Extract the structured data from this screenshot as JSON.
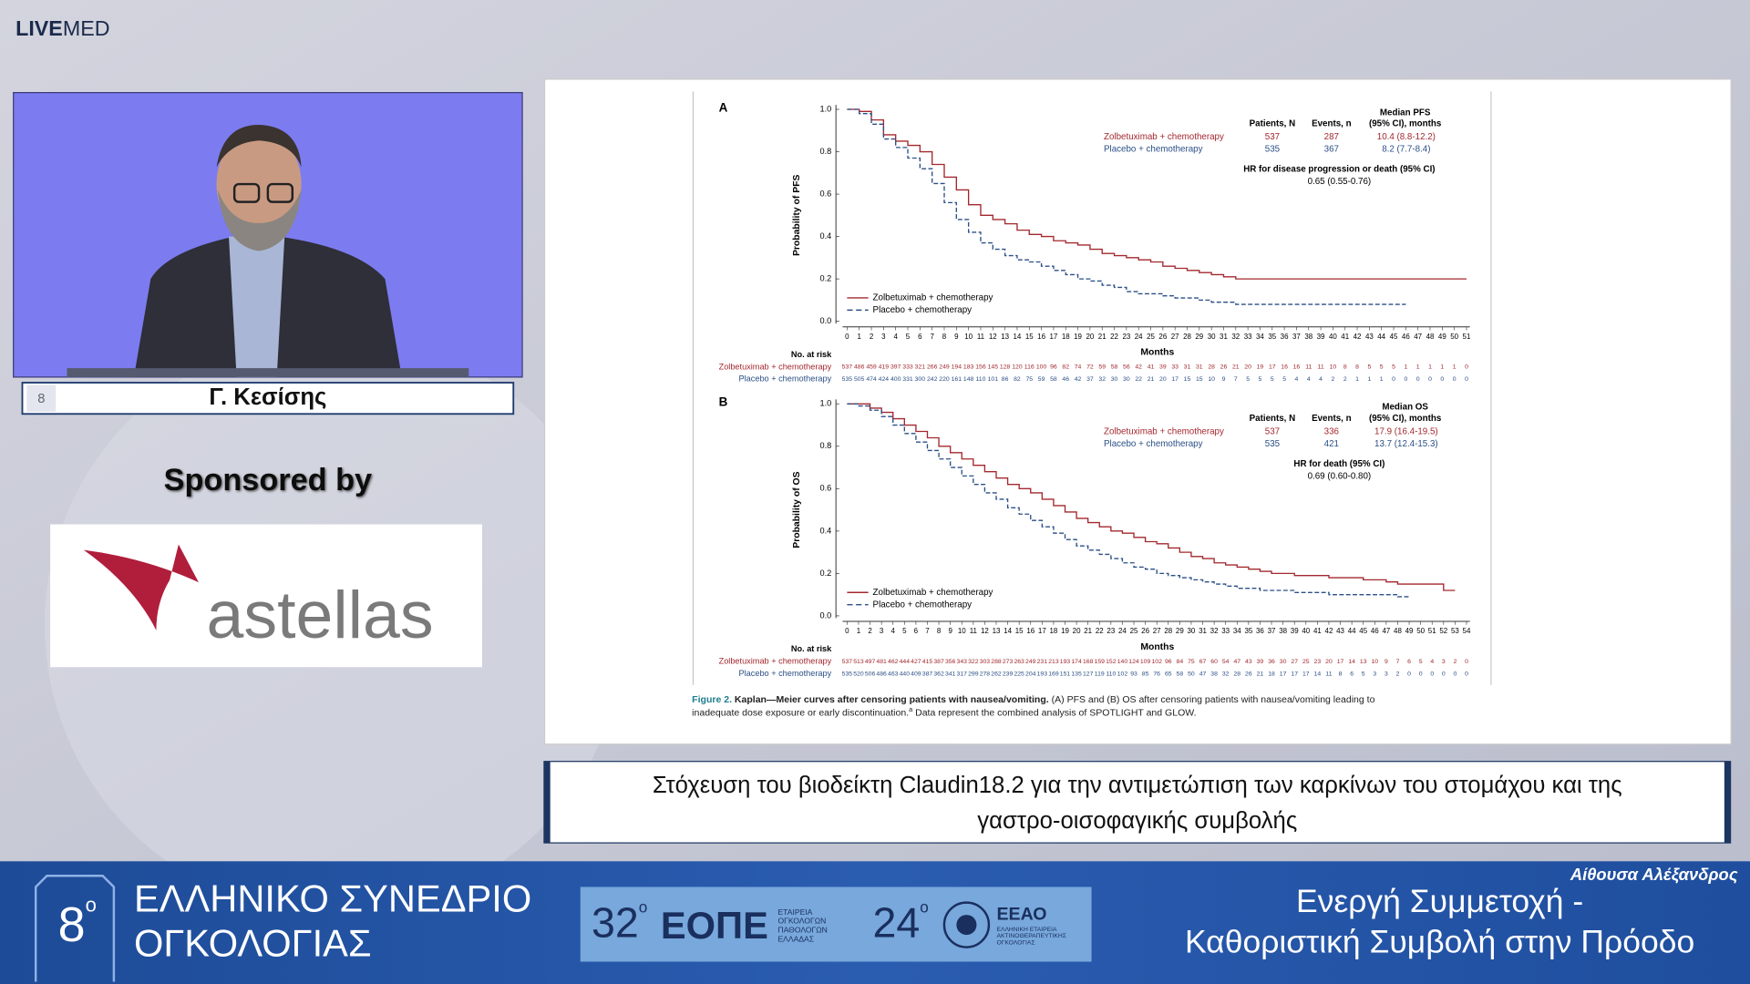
{
  "header": {
    "logo_bold": "LIVE",
    "logo_light": "MED"
  },
  "speaker": {
    "name": "Γ. Κεσίσης",
    "badge": "8"
  },
  "sponsor": {
    "label": "Sponsored by",
    "logo": "astellas"
  },
  "slide": {
    "panels": [
      {
        "label": "A",
        "y_label": "Probability of PFS",
        "x_label": "Months",
        "at_risk_label": "No. at risk",
        "ylim": [
          0,
          1
        ],
        "yticks": [
          {
            "value": 0,
            "label": "0.0"
          },
          {
            "value": 0.2,
            "label": "0.2"
          },
          {
            "value": 0.4,
            "label": "0.4"
          },
          {
            "value": 0.6,
            "label": "0.6"
          },
          {
            "value": 0.8,
            "label": "0.8"
          },
          {
            "value": 1,
            "label": "1.0"
          }
        ],
        "xlim": [
          0,
          51
        ],
        "xticks": [
          0,
          1,
          2,
          3,
          4,
          5,
          6,
          7,
          8,
          9,
          10,
          11,
          12,
          13,
          14,
          15,
          16,
          17,
          18,
          19,
          20,
          21,
          22,
          23,
          24,
          25,
          26,
          27,
          28,
          29,
          30,
          31,
          32,
          33,
          34,
          35,
          36,
          37,
          38,
          39,
          40,
          41,
          42,
          43,
          44,
          45,
          46,
          47,
          48,
          49,
          50,
          51
        ],
        "table_headers": {
          "patients": "Patients, N",
          "events": "Events, n",
          "median_1": "Median PFS",
          "median_2": "(95% CI), months"
        },
        "hr_label": "HR for disease progression or death (95% CI)",
        "hr_value": "0.65 (0.55-0.76)",
        "series": [
          {
            "name": "Zolbetuximab + chemotherapy",
            "color": "#a3282e",
            "dashed": false,
            "patients": 537,
            "events": 287,
            "median": "10.4 (8.8-12.2)",
            "values": [
              1.0,
              0.99,
              0.95,
              0.88,
              0.85,
              0.83,
              0.8,
              0.74,
              0.68,
              0.62,
              0.55,
              0.5,
              0.48,
              0.46,
              0.43,
              0.41,
              0.4,
              0.38,
              0.37,
              0.36,
              0.34,
              0.32,
              0.31,
              0.3,
              0.29,
              0.28,
              0.26,
              0.25,
              0.24,
              0.23,
              0.22,
              0.21,
              0.2,
              0.2,
              0.2,
              0.2,
              0.2,
              0.2,
              0.2,
              0.2,
              0.2,
              0.2,
              0.2,
              0.2,
              0.2,
              0.2,
              0.2,
              0.2,
              0.2,
              0.2,
              0.2,
              0.2
            ],
            "at_risk": [
              537,
              486,
              459,
              419,
              397,
              333,
              321,
              266,
              249,
              194,
              183,
              156,
              145,
              128,
              120,
              116,
              100,
              96,
              82,
              74,
              72,
              59,
              58,
              56,
              42,
              41,
              39,
              33,
              31,
              31,
              28,
              26,
              21,
              20,
              19,
              17,
              16,
              16,
              11,
              11,
              10,
              8,
              8,
              5,
              5,
              5,
              1,
              1,
              1,
              1,
              1,
              0
            ]
          },
          {
            "name": "Placebo + chemotherapy",
            "color": "#2b4f86",
            "dashed": true,
            "patients": 535,
            "events": 367,
            "median": "8.2 (7.7-8.4)",
            "values": [
              1.0,
              0.98,
              0.93,
              0.86,
              0.82,
              0.77,
              0.72,
              0.65,
              0.56,
              0.48,
              0.42,
              0.37,
              0.34,
              0.31,
              0.29,
              0.28,
              0.26,
              0.24,
              0.22,
              0.2,
              0.19,
              0.17,
              0.16,
              0.14,
              0.13,
              0.13,
              0.12,
              0.11,
              0.11,
              0.1,
              0.09,
              0.09,
              0.08,
              0.08,
              0.08,
              0.08,
              0.08,
              0.08,
              0.08,
              0.08,
              0.08,
              0.08,
              0.08,
              0.08,
              0.08,
              0.08,
              0.08
            ],
            "at_risk": [
              535,
              505,
              474,
              424,
              400,
              331,
              300,
              242,
              220,
              161,
              148,
              110,
              101,
              86,
              82,
              75,
              59,
              58,
              46,
              42,
              37,
              32,
              30,
              30,
              22,
              21,
              20,
              17,
              15,
              15,
              10,
              9,
              7,
              5,
              5,
              5,
              5,
              4,
              4,
              4,
              2,
              2,
              1,
              1,
              1,
              0,
              0,
              0,
              0,
              0,
              0,
              0
            ]
          }
        ]
      },
      {
        "label": "B",
        "y_label": "Probability of OS",
        "x_label": "Months",
        "at_risk_label": "No. at risk",
        "ylim": [
          0,
          1
        ],
        "yticks": [
          {
            "value": 0,
            "label": "0.0"
          },
          {
            "value": 0.2,
            "label": "0.2"
          },
          {
            "value": 0.4,
            "label": "0.4"
          },
          {
            "value": 0.6,
            "label": "0.6"
          },
          {
            "value": 0.8,
            "label": "0.8"
          },
          {
            "value": 1,
            "label": "1.0"
          }
        ],
        "xlim": [
          0,
          54
        ],
        "xticks": [
          0,
          1,
          2,
          3,
          4,
          5,
          6,
          7,
          8,
          9,
          10,
          11,
          12,
          13,
          14,
          15,
          16,
          17,
          18,
          19,
          20,
          21,
          22,
          23,
          24,
          25,
          26,
          27,
          28,
          29,
          30,
          31,
          32,
          33,
          34,
          35,
          36,
          37,
          38,
          39,
          40,
          41,
          42,
          43,
          44,
          45,
          46,
          47,
          48,
          49,
          50,
          51,
          52,
          53,
          54
        ],
        "table_headers": {
          "patients": "Patients, N",
          "events": "Events, n",
          "median_1": "Median OS",
          "median_2": "(95% CI), months"
        },
        "hr_label": "HR for death (95% CI)",
        "hr_value": "0.69 (0.60-0.80)",
        "series": [
          {
            "name": "Zolbetuximab + chemotherapy",
            "color": "#a3282e",
            "dashed": false,
            "patients": 537,
            "events": 336,
            "median": "17.9 (16.4-19.5)",
            "values": [
              1.0,
              1.0,
              0.98,
              0.96,
              0.93,
              0.9,
              0.87,
              0.84,
              0.8,
              0.77,
              0.74,
              0.71,
              0.68,
              0.65,
              0.62,
              0.6,
              0.58,
              0.55,
              0.52,
              0.49,
              0.46,
              0.44,
              0.42,
              0.4,
              0.39,
              0.37,
              0.35,
              0.34,
              0.32,
              0.3,
              0.28,
              0.27,
              0.25,
              0.24,
              0.23,
              0.22,
              0.21,
              0.2,
              0.2,
              0.19,
              0.19,
              0.19,
              0.18,
              0.18,
              0.18,
              0.17,
              0.17,
              0.16,
              0.15,
              0.15,
              0.15,
              0.15,
              0.12,
              0.12
            ],
            "at_risk": [
              537,
              513,
              497,
              481,
              462,
              444,
              427,
              415,
              387,
              356,
              343,
              322,
              303,
              288,
              273,
              263,
              249,
              231,
              213,
              193,
              174,
              168,
              159,
              152,
              140,
              124,
              109,
              102,
              96,
              84,
              75,
              67,
              60,
              54,
              47,
              43,
              39,
              36,
              30,
              27,
              25,
              23,
              20,
              17,
              14,
              13,
              10,
              9,
              7,
              6,
              5,
              4,
              3,
              2,
              0
            ]
          },
          {
            "name": "Placebo + chemotherapy",
            "color": "#2b4f86",
            "dashed": true,
            "patients": 535,
            "events": 421,
            "median": "13.7 (12.4-15.3)",
            "values": [
              1.0,
              0.99,
              0.97,
              0.94,
              0.9,
              0.86,
              0.82,
              0.78,
              0.74,
              0.7,
              0.66,
              0.62,
              0.58,
              0.55,
              0.51,
              0.48,
              0.45,
              0.42,
              0.39,
              0.36,
              0.33,
              0.31,
              0.29,
              0.27,
              0.25,
              0.23,
              0.22,
              0.2,
              0.19,
              0.18,
              0.17,
              0.16,
              0.15,
              0.14,
              0.13,
              0.13,
              0.12,
              0.12,
              0.12,
              0.11,
              0.11,
              0.11,
              0.1,
              0.1,
              0.1,
              0.1,
              0.1,
              0.1,
              0.09,
              0.09
            ],
            "at_risk": [
              535,
              520,
              506,
              486,
              463,
              440,
              409,
              387,
              362,
              341,
              317,
              299,
              278,
              262,
              239,
              225,
              204,
              193,
              169,
              151,
              135,
              127,
              119,
              110,
              102,
              93,
              85,
              76,
              65,
              58,
              50,
              47,
              38,
              32,
              28,
              26,
              21,
              18,
              17,
              17,
              17,
              14,
              11,
              8,
              6,
              5,
              3,
              3,
              2,
              0,
              0,
              0,
              0,
              0,
              0
            ]
          }
        ]
      }
    ],
    "caption": {
      "label": "Figure 2.",
      "title": "Kaplan—Meier curves after censoring patients with nausea/vomiting.",
      "line1": "(A) PFS and (B) OS after censoring patients with nausea/vomiting leading to",
      "line2": "inadequate dose exposure or early discontinuation.",
      "sup": "a",
      "line2_tail": "Data represent the combined analysis of SPOTLIGHT and GLOW."
    }
  },
  "title_bar": {
    "lines": [
      "Στόχευση του βιοδείκτη Claudin18.2 για την αντιμετώπιση των καρκίνων του στομάχου και της",
      "γαστρο-οισοφαγικής συμβολής"
    ]
  },
  "footer": {
    "congress_number": "8",
    "degree": "ο",
    "congress_name": [
      "ΕΛΛΗΝΙΚΟ ΣΥΝΕΔΡΙΟ",
      "ΟΓΚΟΛΟΓΙΑΣ"
    ],
    "eope": {
      "number": "32",
      "degree": "ο",
      "acronym": "ΕΟΠΕ",
      "full": [
        "ΕΤΑΙΡΕΙΑ",
        "ΟΓΚΟΛΟΓΩΝ",
        "ΠΑΘΟΛΟΓΩΝ",
        "ΕΛΛΑΔΑΣ"
      ]
    },
    "eeao": {
      "number": "24",
      "degree": "ο",
      "acronym": "ΕΕΑΟ",
      "full": [
        "ΕΛΛΗΝΙΚΗ ΕΤΑΙΡΕΙΑ",
        "ΑΚΤΙΝΟΘΕΡΑΠΕΥΤΙΚΗΣ",
        "ΟΓΚΟΛΟΓΙΑΣ"
      ]
    },
    "room": "Αίθουσα Αλέξανδρος",
    "slogan": [
      "Ενεργή Συμμετοχή -",
      "Καθοριστική Συμβολή στην Πρόοδο"
    ]
  }
}
